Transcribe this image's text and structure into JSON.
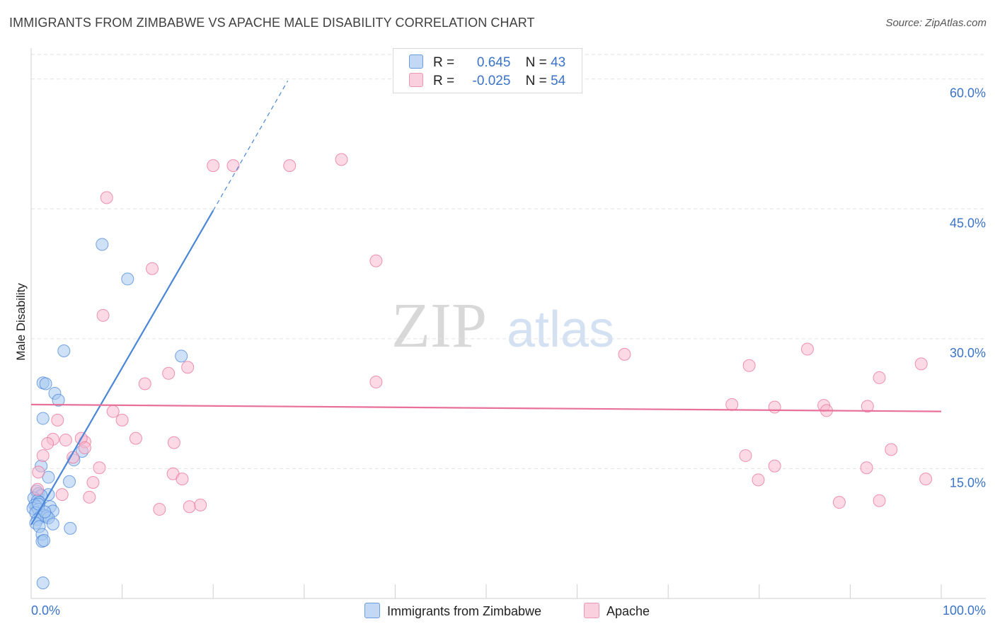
{
  "title": "IMMIGRANTS FROM ZIMBABWE VS APACHE MALE DISABILITY CORRELATION CHART",
  "source": "Source: ZipAtlas.com",
  "watermark": {
    "zip": "ZIP",
    "atlas": "atlas"
  },
  "legend": {
    "r_label": "R =",
    "n_label": "N =",
    "rows": [
      {
        "r": "0.645",
        "n": "43",
        "color": "#a8c8f0"
      },
      {
        "r": "-0.025",
        "n": "54",
        "color": "#f7bcd0"
      }
    ]
  },
  "bottom_legend": [
    {
      "label": "Immigrants from Zimbabwe",
      "color": "#a8c8f0"
    },
    {
      "label": "Apache",
      "color": "#f7bcd0"
    }
  ],
  "chart_data": {
    "type": "scatter",
    "title": "IMMIGRANTS FROM ZIMBABWE VS APACHE MALE DISABILITY CORRELATION CHART",
    "xlabel": "",
    "ylabel": "Male Disability",
    "xlim": [
      0,
      100
    ],
    "ylim": [
      0,
      63
    ],
    "x_tick_labels": [
      "0.0%",
      "100.0%"
    ],
    "y_ticks": [
      15,
      30,
      45,
      60
    ],
    "y_tick_labels": [
      "15.0%",
      "30.0%",
      "45.0%",
      "60.0%"
    ],
    "grid": true,
    "legend_position": "top-center",
    "series": [
      {
        "name": "Immigrants from Zimbabwe",
        "color": "#4a86d8",
        "fill": "#a8c8f0",
        "trend": {
          "x": [
            0.0,
            20.0
          ],
          "y": [
            8.5,
            44.8
          ],
          "dashed_to": [
            28.2,
            59.8
          ]
        },
        "points": [
          [
            7.8,
            40.9
          ],
          [
            10.6,
            36.9
          ],
          [
            3.6,
            28.6
          ],
          [
            16.5,
            28.0
          ],
          [
            1.3,
            24.9
          ],
          [
            1.6,
            24.8
          ],
          [
            2.6,
            23.7
          ],
          [
            3.0,
            22.9
          ],
          [
            1.3,
            20.8
          ],
          [
            5.6,
            17.0
          ],
          [
            4.7,
            16.0
          ],
          [
            1.1,
            15.3
          ],
          [
            1.9,
            14.0
          ],
          [
            4.2,
            13.5
          ],
          [
            0.6,
            12.4
          ],
          [
            0.8,
            12.1
          ],
          [
            1.9,
            12.0
          ],
          [
            1.1,
            11.9
          ],
          [
            0.3,
            11.6
          ],
          [
            0.7,
            11.3
          ],
          [
            0.9,
            11.1
          ],
          [
            0.4,
            10.8
          ],
          [
            0.6,
            10.6
          ],
          [
            0.2,
            10.4
          ],
          [
            0.8,
            10.3
          ],
          [
            2.1,
            10.6
          ],
          [
            2.4,
            10.1
          ],
          [
            0.5,
            9.9
          ],
          [
            1.4,
            9.6
          ],
          [
            1.0,
            9.4
          ],
          [
            1.7,
            9.5
          ],
          [
            1.9,
            9.3
          ],
          [
            0.7,
            9.1
          ],
          [
            0.5,
            8.7
          ],
          [
            2.4,
            8.6
          ],
          [
            0.9,
            8.3
          ],
          [
            4.3,
            8.1
          ],
          [
            1.2,
            7.4
          ],
          [
            1.2,
            6.6
          ],
          [
            1.4,
            6.7
          ],
          [
            1.3,
            1.8
          ],
          [
            0.8,
            10.9
          ],
          [
            1.5,
            10.0
          ]
        ]
      },
      {
        "name": "Apache",
        "color": "#e8709a",
        "fill": "#f7bcd0",
        "trend": {
          "x": [
            0.0,
            100.0
          ],
          "y": [
            22.4,
            21.6
          ]
        },
        "points": [
          [
            8.3,
            46.3
          ],
          [
            20.0,
            50.0
          ],
          [
            22.2,
            50.0
          ],
          [
            28.4,
            50.0
          ],
          [
            34.1,
            50.7
          ],
          [
            13.3,
            38.1
          ],
          [
            37.9,
            39.0
          ],
          [
            7.9,
            32.7
          ],
          [
            15.1,
            26.0
          ],
          [
            12.5,
            24.8
          ],
          [
            17.2,
            26.7
          ],
          [
            37.9,
            25.0
          ],
          [
            65.2,
            28.2
          ],
          [
            78.9,
            26.9
          ],
          [
            85.3,
            28.8
          ],
          [
            93.2,
            25.5
          ],
          [
            97.8,
            27.1
          ],
          [
            77.0,
            22.4
          ],
          [
            81.7,
            22.1
          ],
          [
            87.1,
            22.3
          ],
          [
            87.4,
            21.7
          ],
          [
            91.9,
            22.2
          ],
          [
            9.0,
            21.6
          ],
          [
            10.0,
            20.6
          ],
          [
            2.9,
            20.6
          ],
          [
            2.4,
            18.4
          ],
          [
            1.8,
            17.9
          ],
          [
            3.8,
            18.3
          ],
          [
            5.9,
            18.1
          ],
          [
            11.5,
            18.5
          ],
          [
            15.7,
            18.0
          ],
          [
            5.5,
            18.5
          ],
          [
            5.9,
            17.4
          ],
          [
            1.3,
            16.5
          ],
          [
            4.6,
            16.3
          ],
          [
            7.5,
            15.1
          ],
          [
            0.8,
            14.6
          ],
          [
            15.6,
            14.4
          ],
          [
            16.6,
            13.8
          ],
          [
            6.8,
            13.4
          ],
          [
            78.5,
            16.5
          ],
          [
            79.9,
            13.7
          ],
          [
            81.7,
            15.3
          ],
          [
            94.5,
            17.2
          ],
          [
            91.8,
            15.1
          ],
          [
            98.3,
            13.8
          ],
          [
            0.7,
            12.6
          ],
          [
            3.4,
            12.0
          ],
          [
            6.4,
            11.7
          ],
          [
            14.1,
            10.3
          ],
          [
            17.4,
            10.6
          ],
          [
            18.6,
            10.8
          ],
          [
            88.8,
            11.1
          ],
          [
            93.2,
            11.3
          ]
        ]
      }
    ]
  }
}
